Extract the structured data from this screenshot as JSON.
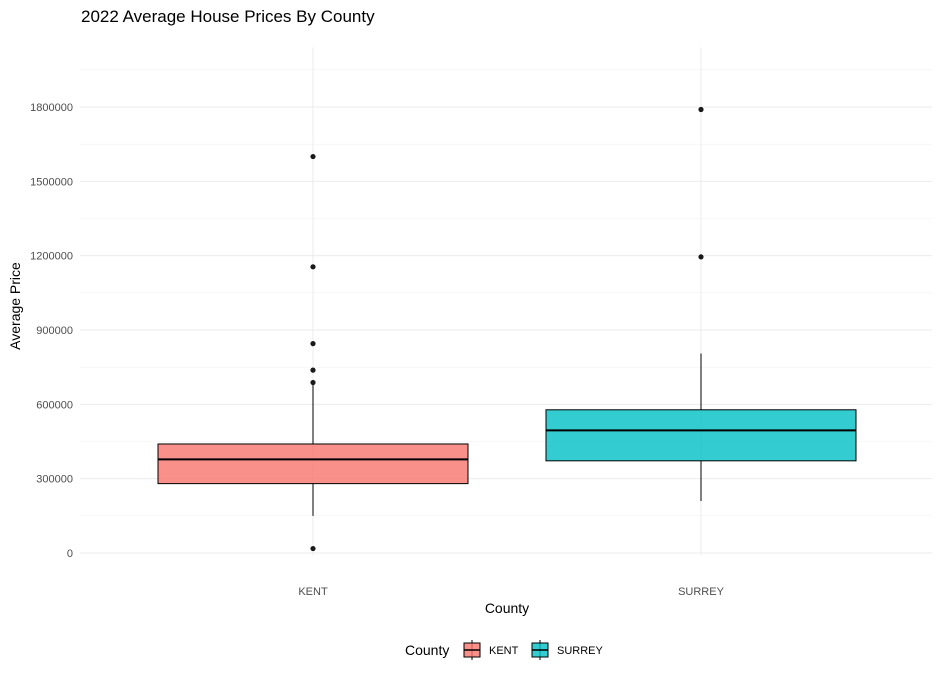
{
  "chart_data": {
    "type": "box",
    "title": "2022 Average House Prices By County",
    "xlabel": "County",
    "ylabel": "Average Price",
    "categories": [
      "KENT",
      "SURREY"
    ],
    "ylim": [
      -10000,
      2040000
    ],
    "y_ticks": [
      0,
      300000,
      600000,
      900000,
      1200000,
      1500000,
      1800000
    ],
    "y_tick_labels": [
      "0",
      "300000",
      "600000",
      "900000",
      "1200000",
      "1500000",
      "1800000"
    ],
    "grid": true,
    "legend": {
      "title": "County",
      "position": "bottom",
      "entries": [
        "KENT",
        "SURREY"
      ]
    },
    "boxes": [
      {
        "category": "KENT",
        "color": "#F8766D",
        "whisker_low": 150000,
        "q1": 280000,
        "median": 378000,
        "q3": 440000,
        "whisker_high": 680000,
        "outliers": [
          18000,
          688000,
          738000,
          845000,
          1155000,
          1600000
        ]
      },
      {
        "category": "SURREY",
        "color": "#00BFC4",
        "whisker_low": 210000,
        "q1": 372000,
        "median": 495000,
        "q3": 578000,
        "whisker_high": 805000,
        "outliers": [
          1195000,
          1790000
        ]
      }
    ]
  }
}
